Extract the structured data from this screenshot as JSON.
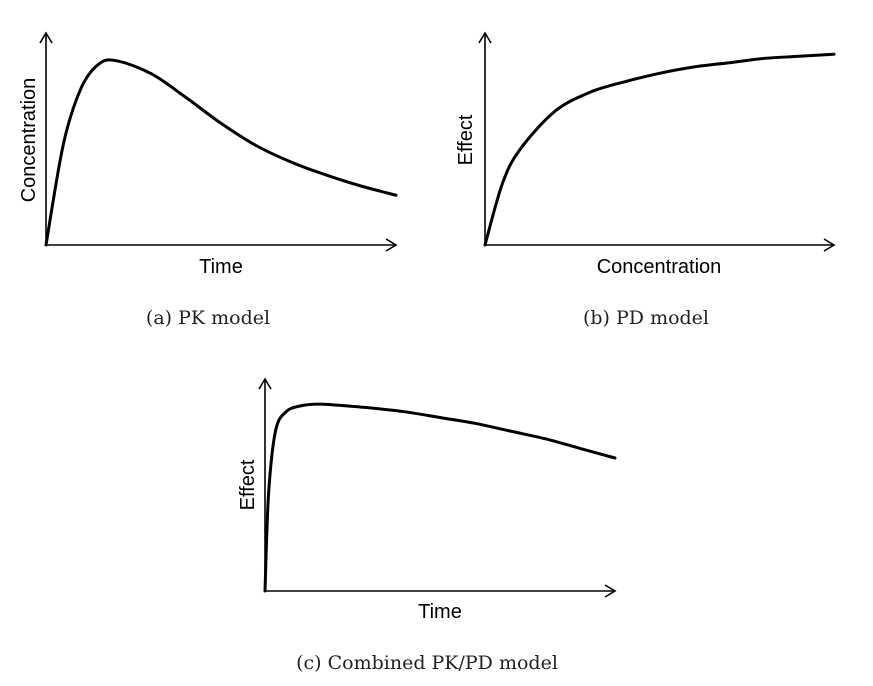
{
  "chart_data": [
    {
      "type": "line",
      "caption": "(a) PK model",
      "xlabel": "Time",
      "ylabel": "Concentration",
      "title": "",
      "ticks": "none",
      "series": [
        {
          "x": [
            0,
            0.5,
            1,
            1.5,
            2,
            3,
            4,
            5,
            6,
            7,
            8,
            9,
            10
          ],
          "values": [
            0,
            0.55,
            0.85,
            0.98,
            1.0,
            0.93,
            0.8,
            0.66,
            0.54,
            0.45,
            0.38,
            0.32,
            0.27
          ]
        }
      ],
      "xlim": [
        0,
        10
      ],
      "ylim": [
        0,
        1.15
      ]
    },
    {
      "type": "line",
      "caption": "(b) PD model",
      "xlabel": "Concentration",
      "ylabel": "Effect",
      "title": "",
      "ticks": "none",
      "series": [
        {
          "x": [
            0,
            0.5,
            1,
            2,
            3,
            4,
            5,
            6,
            7,
            8,
            9,
            10
          ],
          "values": [
            0,
            0.29,
            0.45,
            0.63,
            0.72,
            0.77,
            0.81,
            0.84,
            0.86,
            0.88,
            0.89,
            0.9
          ]
        }
      ],
      "xlim": [
        0,
        10
      ],
      "ylim": [
        0,
        1.0
      ]
    },
    {
      "type": "line",
      "caption": "(c) Combined PK/PD model",
      "xlabel": "Time",
      "ylabel": "Effect",
      "title": "",
      "ticks": "none",
      "series": [
        {
          "x": [
            0,
            0.1,
            0.3,
            0.6,
            1,
            1.5,
            2,
            3,
            4,
            5,
            6,
            7,
            8,
            9,
            10
          ],
          "values": [
            0,
            0.5,
            0.83,
            0.93,
            0.96,
            0.97,
            0.965,
            0.95,
            0.93,
            0.9,
            0.87,
            0.83,
            0.79,
            0.74,
            0.69
          ]
        }
      ],
      "xlim": [
        0,
        10
      ],
      "ylim": [
        0,
        1.1
      ]
    }
  ]
}
